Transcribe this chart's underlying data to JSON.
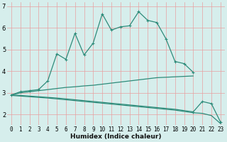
{
  "title": "",
  "xlabel": "Humidex (Indice chaleur)",
  "xlim": [
    -0.5,
    23.5
  ],
  "ylim": [
    1.5,
    7.2
  ],
  "yticks": [
    2,
    3,
    4,
    5,
    6,
    7
  ],
  "xticks": [
    0,
    1,
    2,
    3,
    4,
    5,
    6,
    7,
    8,
    9,
    10,
    11,
    12,
    13,
    14,
    15,
    16,
    17,
    18,
    19,
    20,
    21,
    22,
    23
  ],
  "bg_color": "#d6eeec",
  "grid_color": "#e8a0a0",
  "line_color": "#2e8b7a",
  "line1_x": [
    0,
    1,
    2,
    3,
    4,
    5,
    6,
    7,
    8,
    9,
    10,
    11,
    12,
    13,
    14,
    15,
    16,
    17,
    18,
    19,
    20
  ],
  "line1_y": [
    2.9,
    3.05,
    3.1,
    3.15,
    3.55,
    4.8,
    4.55,
    5.75,
    4.75,
    5.3,
    6.65,
    5.9,
    6.05,
    6.1,
    6.75,
    6.35,
    6.25,
    5.5,
    4.45,
    4.35,
    3.95
  ],
  "line2_x": [
    0,
    1,
    2,
    3,
    4,
    5,
    6,
    7,
    8,
    9,
    10,
    11,
    12,
    13,
    14,
    15,
    16,
    17,
    18,
    19,
    20
  ],
  "line2_y": [
    2.9,
    3.0,
    3.05,
    3.1,
    3.15,
    3.2,
    3.25,
    3.28,
    3.32,
    3.35,
    3.4,
    3.45,
    3.5,
    3.55,
    3.6,
    3.65,
    3.7,
    3.72,
    3.74,
    3.76,
    3.78
  ],
  "line3_x": [
    0,
    1,
    2,
    3,
    4,
    5,
    6,
    7,
    8,
    9,
    10,
    11,
    12,
    13,
    14,
    15,
    16,
    17,
    18,
    19,
    20,
    21,
    22,
    23
  ],
  "line3_y": [
    2.9,
    2.88,
    2.85,
    2.82,
    2.79,
    2.76,
    2.72,
    2.68,
    2.64,
    2.6,
    2.56,
    2.52,
    2.48,
    2.44,
    2.4,
    2.36,
    2.32,
    2.28,
    2.24,
    2.18,
    2.12,
    2.6,
    2.5,
    1.65
  ],
  "line4_x": [
    0,
    1,
    2,
    3,
    4,
    5,
    6,
    7,
    8,
    9,
    10,
    11,
    12,
    13,
    14,
    15,
    16,
    17,
    18,
    19,
    20,
    21,
    22,
    23
  ],
  "line4_y": [
    2.88,
    2.85,
    2.82,
    2.79,
    2.76,
    2.72,
    2.68,
    2.64,
    2.6,
    2.56,
    2.52,
    2.48,
    2.44,
    2.4,
    2.36,
    2.32,
    2.28,
    2.24,
    2.2,
    2.14,
    2.08,
    2.05,
    1.95,
    1.58
  ],
  "xlabel_fontsize": 6.5,
  "tick_fontsize": 5.5,
  "ytick_fontsize": 6.0
}
